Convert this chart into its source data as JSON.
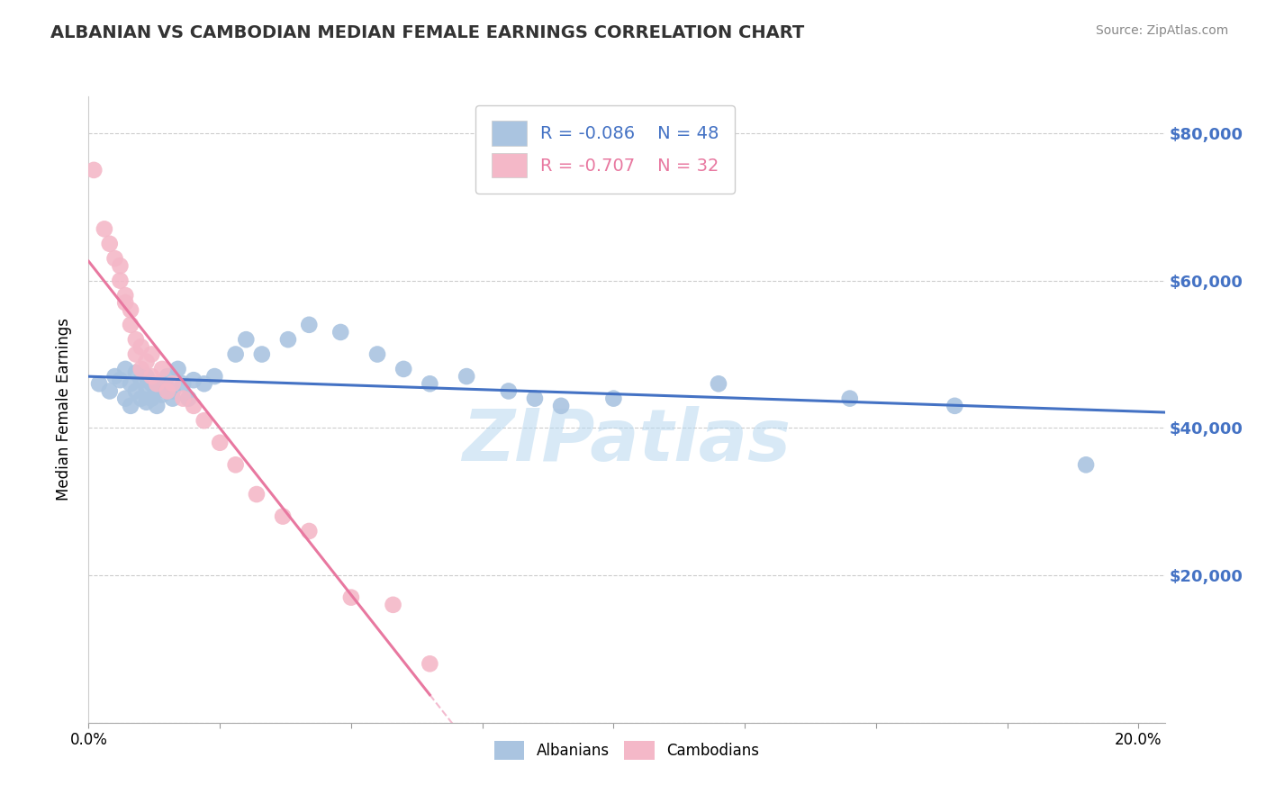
{
  "title": "ALBANIAN VS CAMBODIAN MEDIAN FEMALE EARNINGS CORRELATION CHART",
  "source": "Source: ZipAtlas.com",
  "ylabel": "Median Female Earnings",
  "xlim": [
    0.0,
    0.205
  ],
  "ylim": [
    0,
    85000
  ],
  "yticks": [
    0,
    20000,
    40000,
    60000,
    80000
  ],
  "ytick_labels": [
    "",
    "$20,000",
    "$40,000",
    "$60,000",
    "$80,000"
  ],
  "xticks": [
    0.0,
    0.025,
    0.05,
    0.075,
    0.1,
    0.125,
    0.15,
    0.175,
    0.2
  ],
  "xtick_labels": [
    "0.0%",
    "",
    "",
    "",
    "",
    "",
    "",
    "",
    "20.0%"
  ],
  "albanian_R": -0.086,
  "albanian_N": 48,
  "cambodian_R": -0.707,
  "cambodian_N": 32,
  "albanian_color": "#aac4e0",
  "cambodian_color": "#f4b8c8",
  "albanian_line_color": "#4472c4",
  "cambodian_line_color": "#e878a0",
  "watermark": "ZIPatlas",
  "watermark_color": "#b8d8f0",
  "grid_color": "#cccccc",
  "albanian_x": [
    0.002,
    0.004,
    0.005,
    0.006,
    0.007,
    0.007,
    0.008,
    0.008,
    0.009,
    0.009,
    0.01,
    0.01,
    0.011,
    0.011,
    0.011,
    0.012,
    0.012,
    0.013,
    0.013,
    0.014,
    0.014,
    0.015,
    0.016,
    0.016,
    0.017,
    0.018,
    0.019,
    0.02,
    0.022,
    0.024,
    0.028,
    0.03,
    0.033,
    0.038,
    0.042,
    0.048,
    0.055,
    0.06,
    0.065,
    0.072,
    0.08,
    0.085,
    0.09,
    0.1,
    0.12,
    0.145,
    0.165,
    0.19
  ],
  "albanian_y": [
    46000,
    45000,
    47000,
    46500,
    48000,
    44000,
    46000,
    43000,
    47500,
    45000,
    44000,
    46500,
    43500,
    47000,
    45500,
    44000,
    46000,
    43000,
    45000,
    44500,
    46000,
    47000,
    44000,
    45000,
    48000,
    46000,
    44000,
    46500,
    46000,
    47000,
    50000,
    52000,
    50000,
    52000,
    54000,
    53000,
    50000,
    48000,
    46000,
    47000,
    45000,
    44000,
    43000,
    44000,
    46000,
    44000,
    43000,
    35000
  ],
  "cambodian_x": [
    0.001,
    0.003,
    0.004,
    0.005,
    0.006,
    0.006,
    0.007,
    0.007,
    0.008,
    0.008,
    0.009,
    0.009,
    0.01,
    0.01,
    0.011,
    0.012,
    0.012,
    0.013,
    0.014,
    0.015,
    0.016,
    0.018,
    0.02,
    0.022,
    0.025,
    0.028,
    0.032,
    0.037,
    0.042,
    0.05,
    0.058,
    0.065
  ],
  "cambodian_y": [
    75000,
    67000,
    65000,
    63000,
    62000,
    60000,
    58000,
    57000,
    56000,
    54000,
    52000,
    50000,
    51000,
    48000,
    49000,
    47000,
    50000,
    46000,
    48000,
    45000,
    46000,
    44000,
    43000,
    41000,
    38000,
    35000,
    31000,
    28000,
    26000,
    17000,
    16000,
    8000
  ]
}
